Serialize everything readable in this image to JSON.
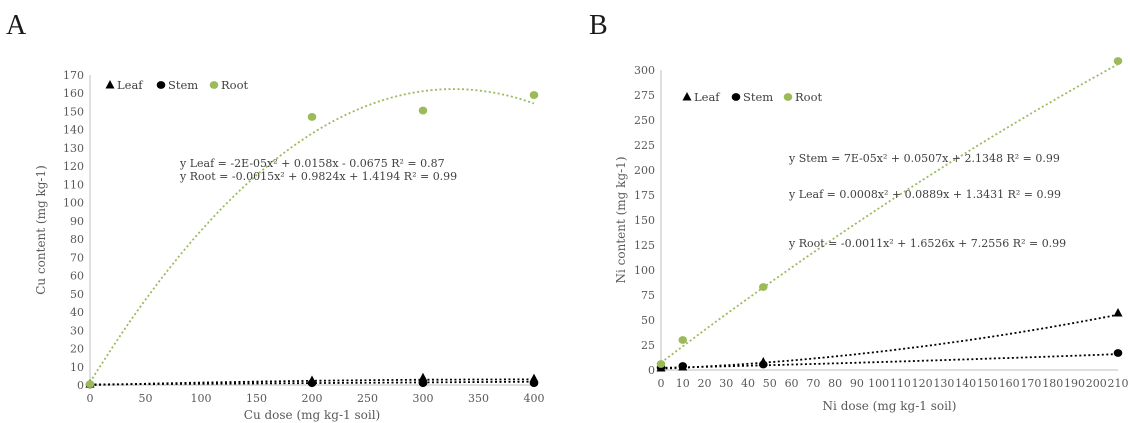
{
  "panels": [
    {
      "letter": "A",
      "chart_data": {
        "type": "scatter",
        "xlabel": "Cu dose (mg kg-1 soil)",
        "ylabel": "Cu content (mg kg-1)",
        "xlim": [
          0,
          400
        ],
        "ylim": [
          0,
          170
        ],
        "x_ticks": [
          0,
          50,
          100,
          150,
          200,
          250,
          300,
          350,
          400
        ],
        "y_ticks": [
          0,
          10,
          20,
          30,
          40,
          50,
          60,
          70,
          80,
          90,
          100,
          110,
          120,
          130,
          140,
          150,
          160,
          170
        ],
        "grid": false,
        "legend_position": "top-left",
        "series": [
          {
            "name": "Leaf",
            "marker": "triangle",
            "color": "#000000",
            "points": [
              [
                0,
                0.5
              ],
              [
                200,
                2.5
              ],
              [
                300,
                4
              ],
              [
                400,
                3.5
              ]
            ],
            "trend": {
              "type": "poly2",
              "a": -2e-05,
              "b": 0.0158,
              "c": -0.0675,
              "color": "#000000"
            }
          },
          {
            "name": "Stem",
            "marker": "circle",
            "color": "#000000",
            "points": [
              [
                0,
                0.3
              ],
              [
                200,
                1
              ],
              [
                300,
                1
              ],
              [
                400,
                1
              ]
            ],
            "trend": {
              "type": "line",
              "from": [
                0,
                0.3
              ],
              "to": [
                400,
                1.8
              ],
              "color": "#000000"
            }
          },
          {
            "name": "Root",
            "marker": "circle",
            "color": "#9bbb59",
            "points": [
              [
                0,
                0.5
              ],
              [
                200,
                147
              ],
              [
                300,
                150.5
              ],
              [
                400,
                159
              ]
            ],
            "trend": {
              "type": "poly2",
              "a": -0.0015,
              "b": 0.9824,
              "c": 1.4194,
              "color": "#9bbb59"
            }
          }
        ],
        "equations": [
          "y  Leaf = -2E-05x² + 0.0158x - 0.0675 R² = 0.87",
          "y Root = -0.0015x² + 0.9824x + 1.4194 R² = 0.99"
        ]
      }
    },
    {
      "letter": "B",
      "chart_data": {
        "type": "scatter",
        "xlabel": "Ni dose (mg kg-1 soil)",
        "ylabel": "Ni content (mg kg-1)",
        "xlim": [
          0,
          210
        ],
        "ylim": [
          0,
          300
        ],
        "x_ticks": [
          0,
          10,
          20,
          30,
          40,
          50,
          60,
          70,
          80,
          90,
          100,
          110,
          120,
          130,
          140,
          150,
          160,
          170,
          180,
          190,
          200,
          210
        ],
        "y_ticks": [
          0,
          25,
          50,
          75,
          100,
          125,
          150,
          175,
          200,
          225,
          250,
          275,
          300
        ],
        "grid": false,
        "legend_position": "top-left",
        "series": [
          {
            "name": "Leaf",
            "marker": "triangle",
            "color": "#000000",
            "points": [
              [
                0,
                2
              ],
              [
                10,
                3
              ],
              [
                47,
                8
              ],
              [
                210,
                57
              ]
            ],
            "trend": {
              "type": "poly2",
              "a": 0.0008,
              "b": 0.0889,
              "c": 1.3431,
              "color": "#000000"
            }
          },
          {
            "name": "Stem",
            "marker": "circle",
            "color": "#000000",
            "points": [
              [
                0,
                2.5
              ],
              [
                10,
                4
              ],
              [
                47,
                5.5
              ],
              [
                210,
                17
              ]
            ],
            "trend": {
              "type": "poly2",
              "a": 7e-05,
              "b": 0.0507,
              "c": 2.1348,
              "color": "#000000"
            }
          },
          {
            "name": "Root",
            "marker": "circle",
            "color": "#9bbb59",
            "points": [
              [
                0,
                6
              ],
              [
                10,
                30
              ],
              [
                47,
                83
              ],
              [
                210,
                309
              ]
            ],
            "trend": {
              "type": "poly2",
              "a": -0.0011,
              "b": 1.6526,
              "c": 7.2556,
              "color": "#9bbb59"
            }
          }
        ],
        "equations": [
          "y Stem = 7E-05x² + 0.0507x + 2.1348 R² = 0.99",
          "y Leaf = 0.0008x² + 0.0889x + 1.3431 R² = 0.99",
          "y Root = -0.0011x² + 1.6526x + 7.2556 R² = 0.99"
        ]
      }
    }
  ]
}
